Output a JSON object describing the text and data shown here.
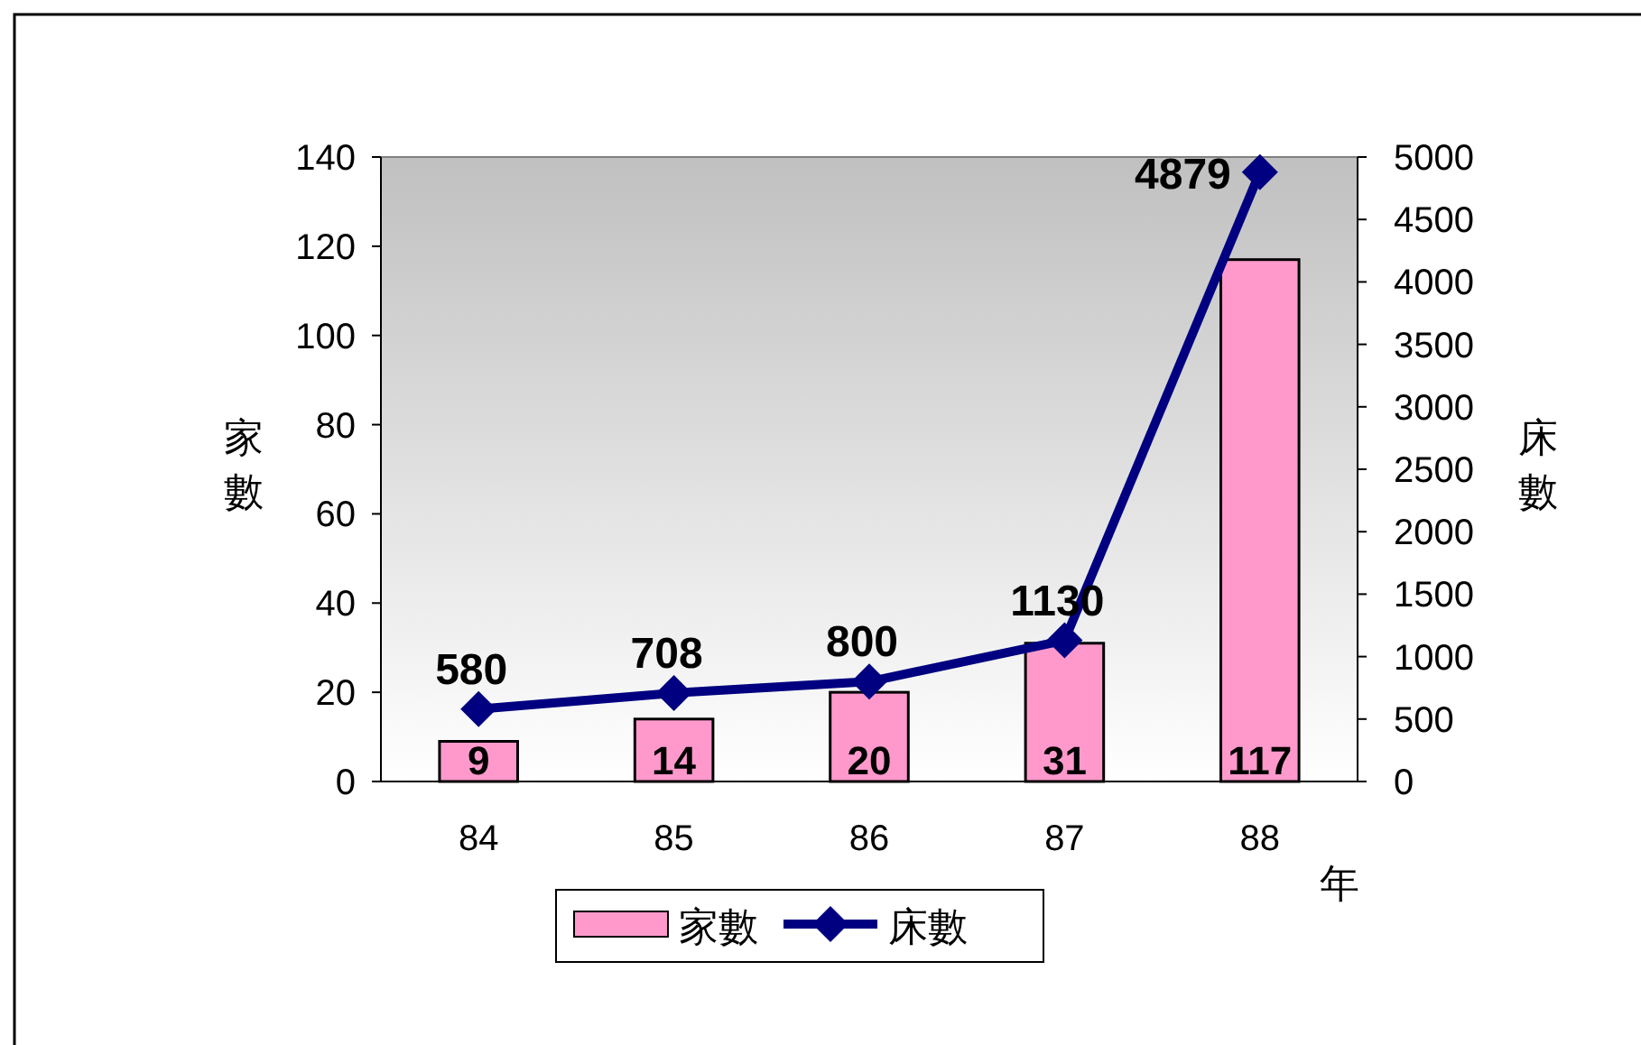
{
  "chart_data": {
    "type": "bar",
    "categories": [
      "84",
      "85",
      "86",
      "87",
      "88"
    ],
    "xlabel": "年",
    "ylabel": "家數",
    "y2label": "床數",
    "ylim": [
      0,
      140
    ],
    "yticks": [
      0,
      20,
      40,
      60,
      80,
      100,
      120,
      140
    ],
    "y2lim": [
      0,
      5000
    ],
    "y2ticks": [
      0,
      500,
      1000,
      1500,
      2000,
      2500,
      3000,
      3500,
      4000,
      4500,
      5000
    ],
    "data_labels": true,
    "legend": "bottom",
    "marker": "diamond",
    "grid": false,
    "series": [
      {
        "name": "家數",
        "color": "#ff99cc",
        "values": [
          9,
          14,
          20,
          31,
          117
        ]
      },
      {
        "name": "床數",
        "type": "line",
        "axis": "y2",
        "color": "#000080",
        "values": [
          580,
          708,
          800,
          1130,
          4879
        ]
      }
    ]
  }
}
